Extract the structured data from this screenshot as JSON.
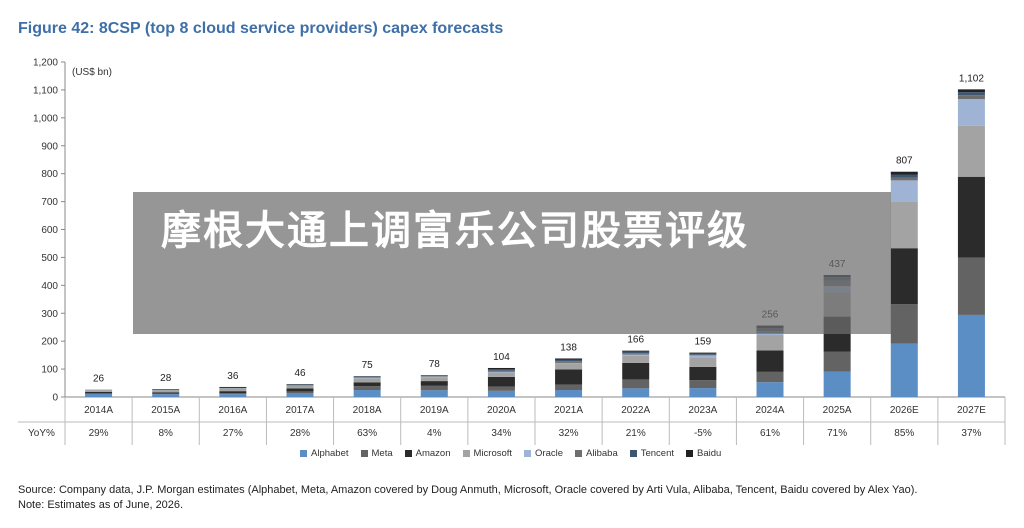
{
  "figure_title": "Figure 42: 8CSP (top 8 cloud service providers) capex forecasts",
  "overlay_text": "摩根大通上调富乐公司股票评级",
  "source_note": "Source: Company data, J.P. Morgan estimates (Alphabet, Meta, Amazon covered by Doug Anmuth, Microsoft, Oracle covered by Arti Vula, Alibaba, Tencent, Baidu covered by Alex Yao).",
  "note": "Note: Estimates as of June, 2026.",
  "chart_data": {
    "type": "bar",
    "stacked": true,
    "unit_label": "(US$ bn)",
    "ylim": [
      0,
      1200
    ],
    "yticks": [
      "0",
      "100",
      "200",
      "300",
      "400",
      "500",
      "600",
      "700",
      "800",
      "900",
      "1,000",
      "1,100",
      "1,200"
    ],
    "categories": [
      "2014A",
      "2015A",
      "2016A",
      "2017A",
      "2018A",
      "2019A",
      "2020A",
      "2021A",
      "2022A",
      "2023A",
      "2024A",
      "2025A",
      "2026E",
      "2027E"
    ],
    "totals": [
      26,
      28,
      36,
      46,
      75,
      78,
      104,
      138,
      166,
      159,
      256,
      437,
      807,
      1102
    ],
    "total_labels": [
      "26",
      "28",
      "36",
      "46",
      "75",
      "78",
      "104",
      "138",
      "166",
      "159",
      "256",
      "437",
      "807",
      "1,102"
    ],
    "yoy_label": "YoY%",
    "yoy": [
      "29%",
      "8%",
      "27%",
      "28%",
      "63%",
      "4%",
      "34%",
      "32%",
      "21%",
      "-5%",
      "61%",
      "71%",
      "85%",
      "37%"
    ],
    "series": [
      {
        "name": "Alphabet",
        "color": "#5b8ec5",
        "values": [
          11,
          10,
          10,
          13,
          25,
          24,
          22,
          25,
          31,
          32,
          53,
          91,
          191,
          294
        ]
      },
      {
        "name": "Meta",
        "color": "#636363",
        "values": [
          2,
          2,
          4,
          7,
          14,
          16,
          15,
          19,
          32,
          28,
          37,
          72,
          142,
          205
        ]
      },
      {
        "name": "Amazon",
        "color": "#2b2b2b",
        "values": [
          5,
          5,
          7,
          11,
          13,
          17,
          35,
          55,
          59,
          48,
          77,
          125,
          200,
          290
        ]
      },
      {
        "name": "Microsoft",
        "color": "#a3a3a3",
        "values": [
          6,
          6,
          9,
          9,
          15,
          14,
          16,
          21,
          25,
          34,
          55,
          87,
          167,
          183
        ]
      },
      {
        "name": "Oracle",
        "color": "#9fb4d5",
        "values": [
          0.5,
          1,
          1,
          1,
          2,
          2,
          2,
          2,
          5,
          7,
          7,
          22,
          76,
          95
        ]
      },
      {
        "name": "Alibaba",
        "color": "#6e6e6e",
        "values": [
          0.5,
          1,
          1,
          2,
          3,
          2,
          4,
          6,
          5,
          3,
          7,
          19,
          10,
          14
        ]
      },
      {
        "name": "Tencent",
        "color": "#3e5672",
        "values": [
          0.5,
          2,
          2,
          2,
          2,
          2,
          5,
          5,
          5,
          4,
          10,
          13,
          11,
          11
        ]
      },
      {
        "name": "Baidu",
        "color": "#222222",
        "values": [
          0.5,
          1,
          2,
          1,
          1,
          1,
          5,
          5,
          4,
          3,
          10,
          8,
          10,
          10
        ]
      }
    ],
    "legend_position": "bottom",
    "grid": false
  }
}
